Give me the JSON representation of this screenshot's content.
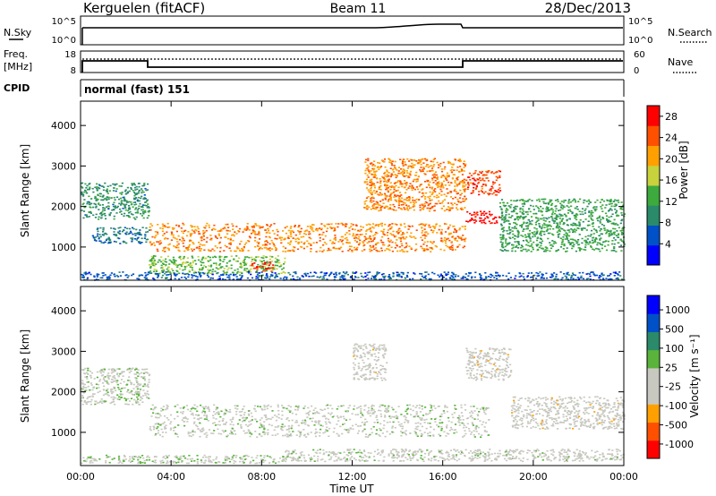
{
  "header": {
    "station": "Kerguelen (fitACF)",
    "beam": "Beam 11",
    "date": "28/Dec/2013"
  },
  "strip": {
    "nsky_label": "N.Sky",
    "nsky_top_tick": "10^5",
    "nsky_bottom_tick": "10^0",
    "nsearch_label": "N.Search",
    "freq_label_1": "Freq.",
    "freq_label_2": "[MHz]",
    "freq_ticks": [
      "18",
      "8"
    ],
    "nave_ticks": [
      "60",
      "0"
    ],
    "nave_label": "Nave",
    "cpid_label": "CPID",
    "cpid_value": "normal (fast) 151"
  },
  "chart_data": [
    {
      "type": "heatmap",
      "title": "",
      "xlabel": "",
      "ylabel": "Slant Range [km]",
      "x_ticks": [
        "00:00",
        "04:00",
        "08:00",
        "12:00",
        "16:00",
        "20:00",
        "00:00"
      ],
      "xlim_hours": [
        0,
        24
      ],
      "y_ticks": [
        "1000",
        "2000",
        "3000",
        "4000"
      ],
      "ylim": [
        180,
        4600
      ],
      "colorbar": {
        "label": "Power [dB]",
        "ticks": [
          "4",
          "8",
          "12",
          "16",
          "20",
          "24",
          "28"
        ],
        "range": [
          0,
          30
        ],
        "colors": [
          "#0000ff",
          "#0050c8",
          "#2a8a6a",
          "#3caa3c",
          "#c8d23c",
          "#ffa000",
          "#ff5000",
          "#ff0000"
        ]
      },
      "regions": [
        {
          "t0": 0.0,
          "t1": 3.0,
          "r0": 1700,
          "r1": 2600,
          "value": 10
        },
        {
          "t0": 0.5,
          "t1": 3.0,
          "r0": 1100,
          "r1": 1500,
          "value": 8
        },
        {
          "t0": 3.0,
          "t1": 17.0,
          "r0": 900,
          "r1": 1600,
          "value": 22
        },
        {
          "t0": 3.0,
          "t1": 9.0,
          "r0": 350,
          "r1": 800,
          "value": 14
        },
        {
          "t0": 7.5,
          "t1": 8.5,
          "r0": 400,
          "r1": 650,
          "value": 26
        },
        {
          "t0": 12.5,
          "t1": 17.0,
          "r0": 1900,
          "r1": 3200,
          "value": 22
        },
        {
          "t0": 17.0,
          "t1": 18.5,
          "r0": 1600,
          "r1": 1900,
          "value": 28
        },
        {
          "t0": 17.0,
          "t1": 18.5,
          "r0": 2300,
          "r1": 2900,
          "value": 25
        },
        {
          "t0": 18.5,
          "t1": 24.0,
          "r0": 900,
          "r1": 2200,
          "value": 12
        },
        {
          "t0": 0.0,
          "t1": 24.0,
          "r0": 200,
          "r1": 400,
          "value": 6
        }
      ]
    },
    {
      "type": "heatmap",
      "title": "",
      "xlabel": "Time UT",
      "ylabel": "Slant Range [km]",
      "x_ticks": [
        "00:00",
        "04:00",
        "08:00",
        "12:00",
        "16:00",
        "20:00",
        "00:00"
      ],
      "xlim_hours": [
        0,
        24
      ],
      "y_ticks": [
        "1000",
        "2000",
        "3000",
        "4000"
      ],
      "ylim": [
        180,
        4600
      ],
      "colorbar": {
        "label": "Velocity [m s⁻¹]",
        "ticks": [
          "1000",
          "500",
          "100",
          "25",
          "-25",
          "-100",
          "-500",
          "-1000"
        ],
        "range": [
          -1200,
          1200
        ],
        "colors": [
          "#ff0000",
          "#ff5000",
          "#ffa000",
          "#c8c8c0",
          "#c8c8c0",
          "#5ab43c",
          "#2a8a6a",
          "#0050c8",
          "#0000ff"
        ]
      },
      "regions": [
        {
          "t0": 0.0,
          "t1": 3.0,
          "r0": 1700,
          "r1": 2600,
          "value": 0
        },
        {
          "t0": 3.0,
          "t1": 18.0,
          "r0": 900,
          "r1": 1700,
          "value": 0
        },
        {
          "t0": 12.0,
          "t1": 13.5,
          "r0": 2300,
          "r1": 3200,
          "value": -200
        },
        {
          "t0": 17.0,
          "t1": 19.0,
          "r0": 2300,
          "r1": 3100,
          "value": -200
        },
        {
          "t0": 19.0,
          "t1": 24.0,
          "r0": 1100,
          "r1": 1900,
          "value": -200
        },
        {
          "t0": 0.0,
          "t1": 9.0,
          "r0": 250,
          "r1": 450,
          "value": 60
        },
        {
          "t0": 9.0,
          "t1": 24.0,
          "r0": 300,
          "r1": 600,
          "value": -40
        }
      ]
    }
  ]
}
